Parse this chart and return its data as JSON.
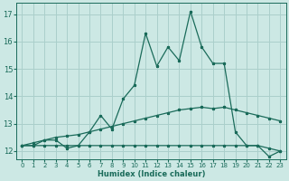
{
  "xlabel": "Humidex (Indice chaleur)",
  "bg_color": "#cce8e4",
  "grid_color": "#aacfcb",
  "line_color": "#1a6b5a",
  "xlim": [
    -0.5,
    23.5
  ],
  "ylim": [
    11.7,
    17.4
  ],
  "xticks": [
    0,
    1,
    2,
    3,
    4,
    5,
    6,
    7,
    8,
    9,
    10,
    11,
    12,
    13,
    14,
    15,
    16,
    17,
    18,
    19,
    20,
    21,
    22,
    23
  ],
  "yticks": [
    12,
    13,
    14,
    15,
    16,
    17
  ],
  "line1_y": [
    12.2,
    12.2,
    12.4,
    12.4,
    12.1,
    12.2,
    12.7,
    13.3,
    12.8,
    13.9,
    14.4,
    16.3,
    15.1,
    15.8,
    15.3,
    17.1,
    15.8,
    15.2,
    15.2,
    12.7,
    12.2,
    12.2,
    11.8,
    12.0
  ],
  "line2_y": [
    12.2,
    12.3,
    12.4,
    12.5,
    12.55,
    12.6,
    12.7,
    12.8,
    12.9,
    13.0,
    13.1,
    13.2,
    13.3,
    13.4,
    13.5,
    13.55,
    13.6,
    13.55,
    13.6,
    13.5,
    13.4,
    13.3,
    13.2,
    13.1
  ],
  "line3_y": [
    12.2,
    12.2,
    12.2,
    12.2,
    12.2,
    12.2,
    12.2,
    12.2,
    12.2,
    12.2,
    12.2,
    12.2,
    12.2,
    12.2,
    12.2,
    12.2,
    12.2,
    12.2,
    12.2,
    12.2,
    12.2,
    12.2,
    12.1,
    12.0
  ]
}
